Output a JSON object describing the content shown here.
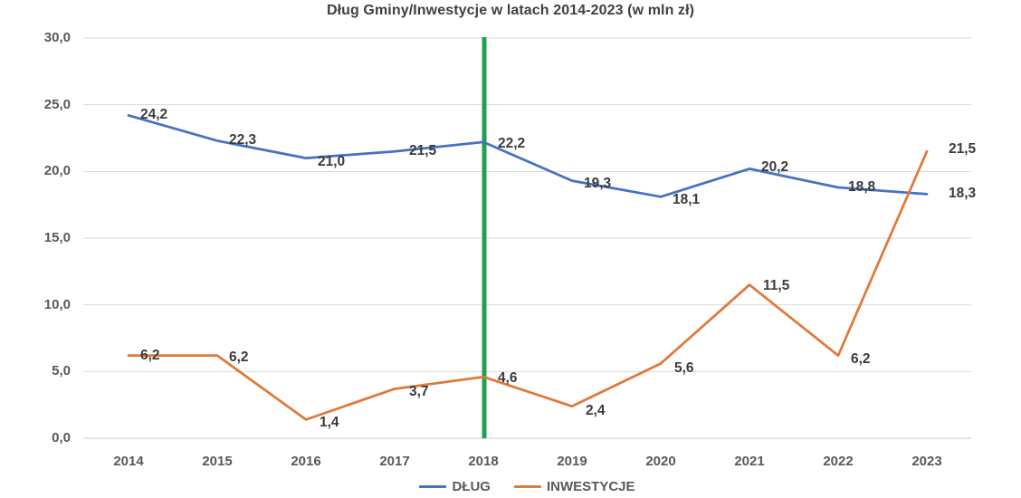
{
  "chart_data": {
    "type": "line",
    "title": "Dług Gminy/Inwestycje w latach 2014-2023 (w mln zł)",
    "xlabel": "",
    "ylabel": "",
    "categories": [
      "2014",
      "2015",
      "2016",
      "2017",
      "2018",
      "2019",
      "2020",
      "2021",
      "2022",
      "2023"
    ],
    "series": [
      {
        "name": "DŁUG",
        "color": "#4472C4",
        "values": [
          24.2,
          22.3,
          21.0,
          21.5,
          22.2,
          19.3,
          18.1,
          20.2,
          18.8,
          18.3
        ],
        "labels": [
          "24,2",
          "22,3",
          "21,0",
          "21,5",
          "22,2",
          "19,3",
          "18,1",
          "20,2",
          "18,8",
          "18,3"
        ]
      },
      {
        "name": "INWESTYCJE",
        "color": "#E0793A",
        "values": [
          6.2,
          6.2,
          1.4,
          3.7,
          4.6,
          2.4,
          5.6,
          11.5,
          6.2,
          21.5
        ],
        "labels": [
          "6,2",
          "6,2",
          "1,4",
          "3,7",
          "4,6",
          "2,4",
          "5,6",
          "11,5",
          "6,2",
          "21,5"
        ]
      }
    ],
    "ylim": [
      0,
      30
    ],
    "y_ticks": [
      {
        "value": 0,
        "label": "0,0"
      },
      {
        "value": 5,
        "label": "5,0"
      },
      {
        "value": 10,
        "label": "10,0"
      },
      {
        "value": 15,
        "label": "15,0"
      },
      {
        "value": 20,
        "label": "20,0"
      },
      {
        "value": 25,
        "label": "25,0"
      },
      {
        "value": 30,
        "label": "30,0"
      }
    ],
    "grid": true,
    "legend_position": "bottom",
    "vertical_marker": {
      "category": "2018",
      "color": "#1EA24E"
    },
    "colors": {
      "gridline": "#D9D9D9",
      "axis_line": "#C9C9C9",
      "title_text": "#404040",
      "tick_text": "#595959",
      "data_label_text": "#3B3B3B"
    }
  }
}
